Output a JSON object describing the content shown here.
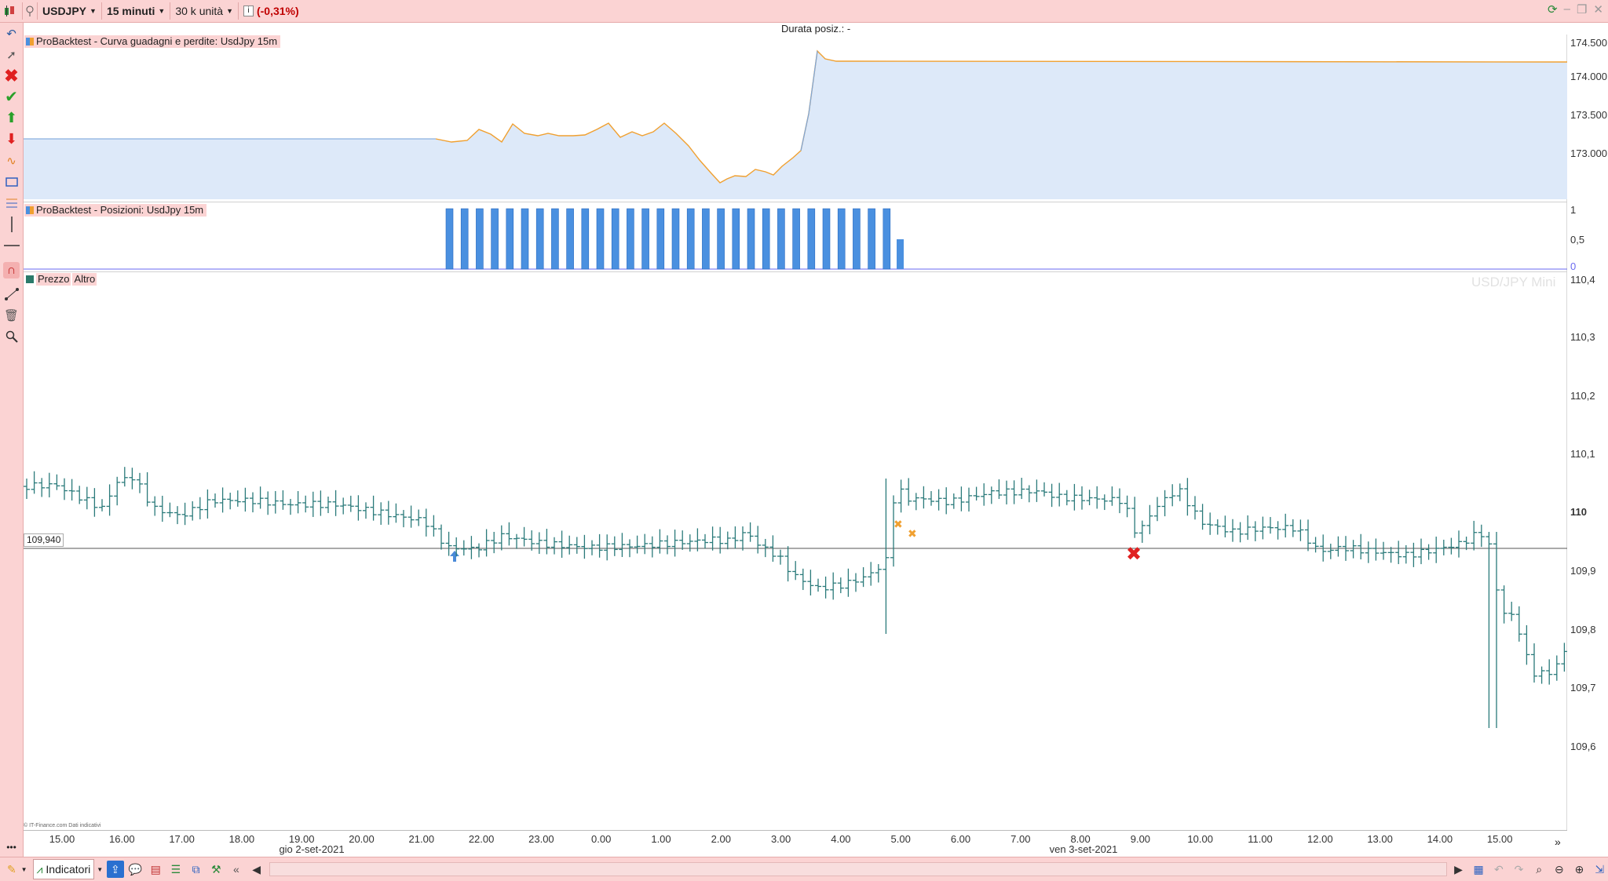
{
  "toolbar": {
    "symbol": "USDJPY",
    "timeframe": "15 minuti",
    "units": "30 k unità",
    "change": "(-0,31%)"
  },
  "header": {
    "duration_label": "Durata posiz.: -"
  },
  "pane_equity": {
    "title": "ProBacktest - Curva guadagni e perdite: UsdJpy 15m",
    "y_ticks": [
      "174.500",
      "174.000",
      "173.500",
      "173.000"
    ]
  },
  "pane_positions": {
    "title": "ProBacktest - Posizioni: UsdJpy 15m",
    "y_ticks": [
      "1",
      "0,5",
      "0"
    ]
  },
  "pane_price": {
    "title_left": "Prezzo",
    "title_right": "Altro",
    "watermark": "USD/JPY Mini",
    "current_price": "109,940",
    "credit": "© IT-Finance.com Dati indicativi",
    "y_ticks": [
      "110,4",
      "110,3",
      "110,2",
      "110,1",
      "110",
      "109,9",
      "109,8",
      "109,7",
      "109,6"
    ]
  },
  "x_axis": {
    "times": [
      "15.00",
      "16.00",
      "17.00",
      "18.00",
      "19.00",
      "20.00",
      "21.00",
      "22.00",
      "23.00",
      "0.00",
      "1.00",
      "2.00",
      "3.00",
      "4.00",
      "5.00",
      "6.00",
      "7.00",
      "8.00",
      "9.00",
      "10.00",
      "11.00",
      "12.00",
      "13.00",
      "14.00",
      "15.00"
    ],
    "dates": [
      "gio 2-set-2021",
      "ven 3-set-2021"
    ]
  },
  "bottombar": {
    "indicators_label": "Indicatori"
  },
  "colors": {
    "toolbar_bg": "#fbd3d3",
    "equity_line": "#f0a030",
    "equity_fill": "#dde9f9",
    "bar_color": "#4a90e0",
    "price_bars": "#2a7a7a",
    "exit_marker": "#e02020"
  },
  "icons": [
    "hand-icon",
    "pointer-icon",
    "cross-delete-icon",
    "check-icon",
    "arrow-up-icon",
    "arrow-down-icon",
    "curve-icon",
    "rectangle-icon",
    "fibonacci-icon",
    "vertical-line-icon",
    "horizontal-line-icon",
    "magnet-icon",
    "trend-icon",
    "trash-icon",
    "zoom-icon",
    "refresh-icon",
    "search-zoom-icon",
    "zoom-out-icon",
    "zoom-in-icon",
    "undo-icon",
    "redo-icon"
  ]
}
